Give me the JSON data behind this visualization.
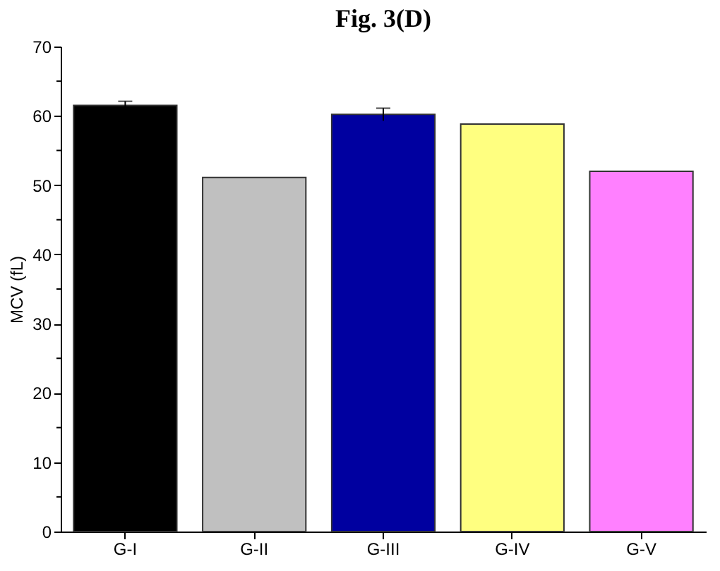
{
  "chart_data": {
    "type": "bar",
    "title": "Fig. 3(D)",
    "ylabel": "MCV (fL)",
    "categories": [
      "G-I",
      "G-II",
      "G-III",
      "G-IV",
      "G-V"
    ],
    "values": [
      61.5,
      51.1,
      60.2,
      58.8,
      52.0
    ],
    "colors": [
      "#000000",
      "#c0c0c0",
      "#0000a0",
      "#ffff80",
      "#ff80ff"
    ],
    "errors": [
      0.6,
      null,
      0.9,
      null,
      null
    ],
    "ylim": [
      0,
      70
    ],
    "yticks": [
      0,
      {
        "value": 5,
        "label": null
      },
      10,
      {
        "value": 15,
        "label": null
      },
      20,
      {
        "value": 25,
        "label": null
      },
      30,
      {
        "value": 35,
        "label": null
      },
      40,
      {
        "value": 45,
        "label": null
      },
      50,
      {
        "value": 55,
        "label": null
      },
      60,
      {
        "value": 65,
        "label": null
      },
      70
    ],
    "grid": false
  }
}
